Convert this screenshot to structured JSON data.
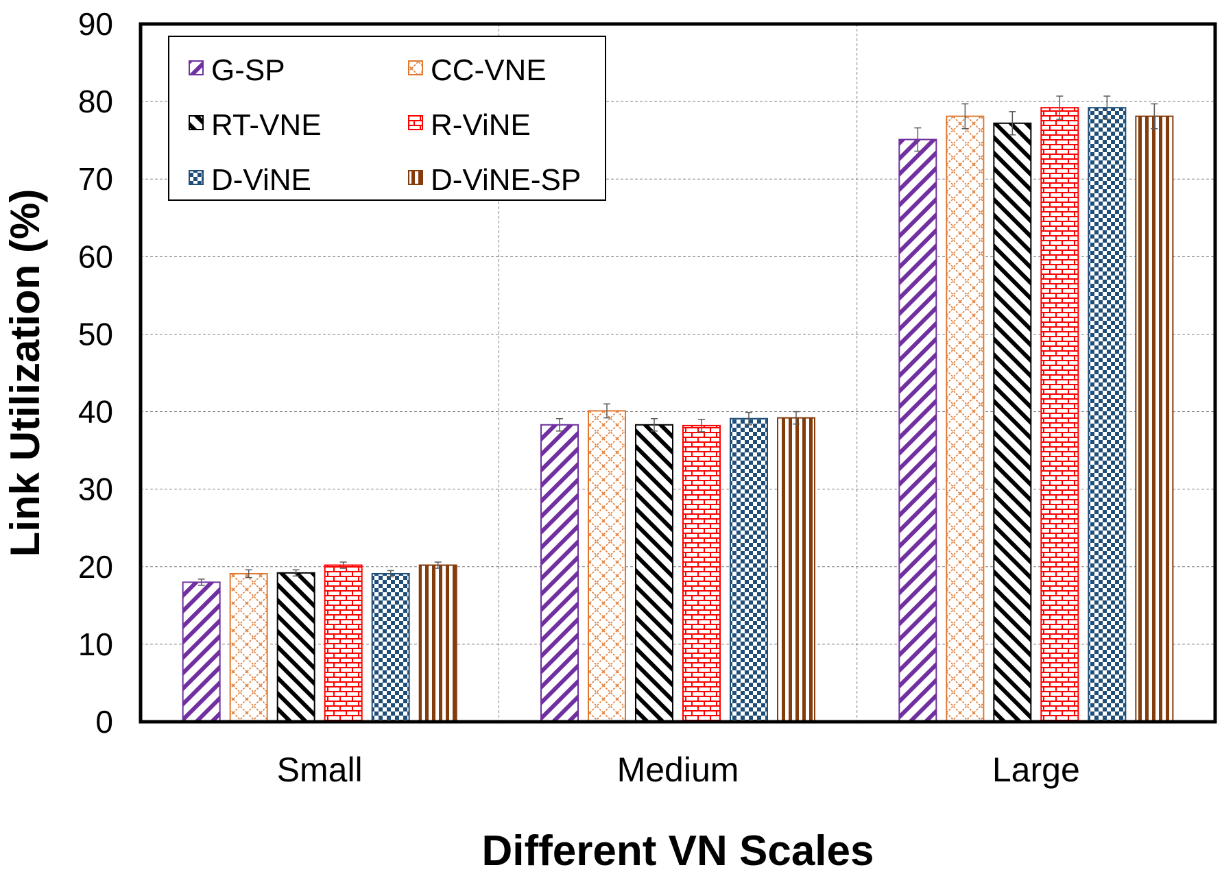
{
  "chart_data": {
    "type": "bar",
    "title": "",
    "xlabel": "Different VN Scales",
    "ylabel": "Link Utilization (%)",
    "ylim": [
      0,
      90
    ],
    "yticks": [
      0,
      10,
      20,
      30,
      40,
      50,
      60,
      70,
      80,
      90
    ],
    "grid": true,
    "legend_position": "top-left",
    "categories": [
      "Small",
      "Medium",
      "Large"
    ],
    "series": [
      {
        "name": "G-SP",
        "values": [
          18,
          38.3,
          75.1
        ],
        "errors": [
          0.4,
          0.8,
          1.5
        ],
        "color": "#7030a0",
        "pattern": "diag-up"
      },
      {
        "name": "CC-VNE",
        "values": [
          19.1,
          40.1,
          78.1
        ],
        "errors": [
          0.5,
          0.9,
          1.6
        ],
        "color": "#e07830",
        "pattern": "lattice"
      },
      {
        "name": "RT-VNE",
        "values": [
          19.2,
          38.3,
          77.2
        ],
        "errors": [
          0.4,
          0.8,
          1.5
        ],
        "color": "#000000",
        "pattern": "diag-down"
      },
      {
        "name": "R-ViNE",
        "values": [
          20.2,
          38.2,
          79.2
        ],
        "errors": [
          0.4,
          0.8,
          1.5
        ],
        "color": "#ff0000",
        "pattern": "brick"
      },
      {
        "name": "D-ViNE",
        "values": [
          19.1,
          39.1,
          79.2
        ],
        "errors": [
          0.4,
          0.8,
          1.5
        ],
        "color": "#1f4e79",
        "pattern": "checker"
      },
      {
        "name": "D-ViNE-SP",
        "values": [
          20.2,
          39.2,
          78.1
        ],
        "errors": [
          0.4,
          0.8,
          1.6
        ],
        "color": "#843c0c",
        "pattern": "vertical"
      }
    ]
  }
}
